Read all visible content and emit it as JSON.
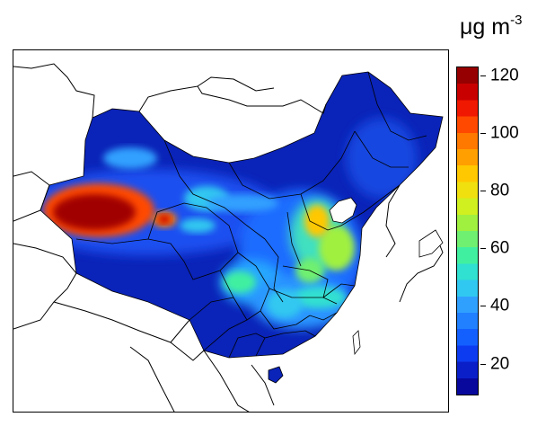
{
  "map": {
    "unit_main": "μg m",
    "unit_sup": "-3",
    "colorbar": {
      "min": 9,
      "max": 123,
      "ticks": [
        {
          "value": 120,
          "label": "120"
        },
        {
          "value": 100,
          "label": "100"
        },
        {
          "value": 80,
          "label": "80"
        },
        {
          "value": 60,
          "label": "60"
        },
        {
          "value": 40,
          "label": "40"
        },
        {
          "value": 20,
          "label": "20"
        }
      ],
      "colors": [
        "#08089c",
        "#0a1fc8",
        "#0d3cf0",
        "#1460ff",
        "#2080ff",
        "#30a0ff",
        "#30c8f0",
        "#30e0d0",
        "#40f0a0",
        "#70f070",
        "#a0f040",
        "#d0f020",
        "#f0e010",
        "#ffc800",
        "#ffa000",
        "#ff7800",
        "#ff4800",
        "#f01800",
        "#c80000",
        "#960000"
      ]
    },
    "colors": {
      "background_low": "#0a23b8",
      "moderate": "#2f8cff",
      "high": "#ffd000",
      "extreme": "#a00000",
      "border": "#000000"
    }
  }
}
